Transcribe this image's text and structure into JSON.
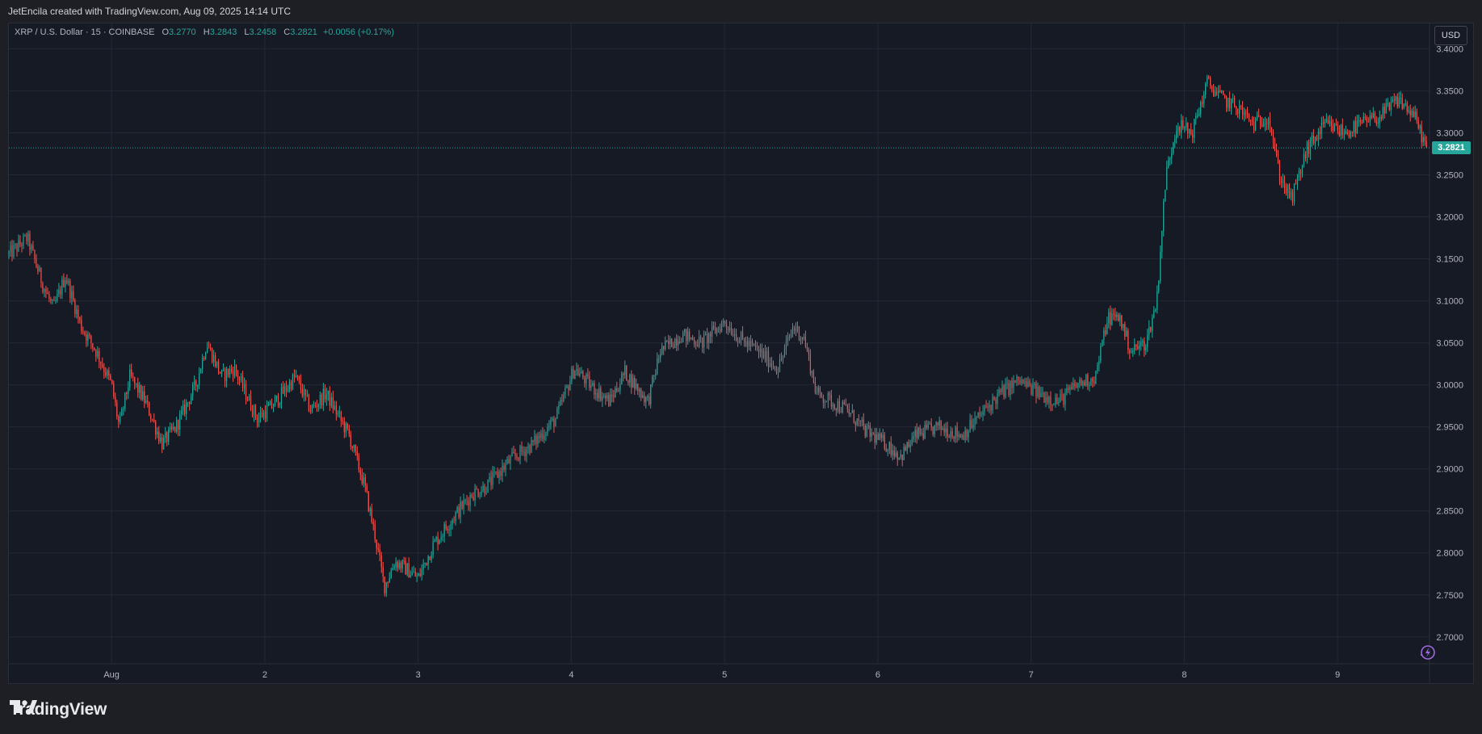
{
  "header": {
    "attribution": "JetEncila created with TradingView.com, Aug 09, 2025 14:14 UTC"
  },
  "legend": {
    "symbol": "XRP / U.S. Dollar · 15 · COINBASE",
    "o_label": "O",
    "o_value": "3.2770",
    "h_label": "H",
    "h_value": "3.2843",
    "l_label": "L",
    "l_value": "3.2458",
    "c_label": "C",
    "c_value": "3.2821",
    "change": "+0.0056 (+0.17%)"
  },
  "currency_button": "USD",
  "last_price_label": "3.2821",
  "brand": {
    "wordmark": "TradingView"
  },
  "icons": {
    "alert": "lightning-alert-icon",
    "logo": "tradingview-logo-icon"
  },
  "colors": {
    "up": "#26a69a",
    "down": "#ef5350",
    "background": "#161a25",
    "grid": "#242935",
    "axis_text": "#b2b5be"
  },
  "chart_data": {
    "type": "candlestick",
    "instrument": "XRP / U.S. Dollar",
    "interval": "15",
    "exchange": "COINBASE",
    "currency": "USD",
    "ylim": [
      2.67,
      3.41
    ],
    "y_ticks": [
      "3.4000",
      "3.3500",
      "3.3000",
      "3.2500",
      "3.2000",
      "3.1500",
      "3.1000",
      "3.0500",
      "3.0000",
      "2.9500",
      "2.9000",
      "2.8500",
      "2.8000",
      "2.7500",
      "2.7000"
    ],
    "x_ticks": [
      {
        "label": "Aug",
        "t": 1.0
      },
      {
        "label": "2",
        "t": 2.0
      },
      {
        "label": "3",
        "t": 3.0
      },
      {
        "label": "4",
        "t": 4.0
      },
      {
        "label": "5",
        "t": 5.0
      },
      {
        "label": "6",
        "t": 6.0
      },
      {
        "label": "7",
        "t": 7.0
      },
      {
        "label": "8",
        "t": 8.0
      },
      {
        "label": "9",
        "t": 9.0
      }
    ],
    "xlim": [
      0.33,
      9.6
    ],
    "last_price": 3.2821,
    "close_path": [
      [
        0.33,
        3.155
      ],
      [
        0.45,
        3.175
      ],
      [
        0.55,
        3.12
      ],
      [
        0.62,
        3.09
      ],
      [
        0.7,
        3.13
      ],
      [
        0.8,
        3.07
      ],
      [
        0.9,
        3.04
      ],
      [
        1.0,
        3.0
      ],
      [
        1.05,
        2.95
      ],
      [
        1.12,
        3.01
      ],
      [
        1.22,
        2.98
      ],
      [
        1.33,
        2.93
      ],
      [
        1.42,
        2.95
      ],
      [
        1.55,
        3.0
      ],
      [
        1.62,
        3.05
      ],
      [
        1.72,
        3.01
      ],
      [
        1.8,
        3.02
      ],
      [
        1.9,
        2.98
      ],
      [
        1.95,
        2.96
      ],
      [
        2.05,
        2.975
      ],
      [
        2.2,
        3.01
      ],
      [
        2.3,
        2.97
      ],
      [
        2.4,
        2.99
      ],
      [
        2.55,
        2.94
      ],
      [
        2.65,
        2.88
      ],
      [
        2.72,
        2.82
      ],
      [
        2.78,
        2.76
      ],
      [
        2.85,
        2.79
      ],
      [
        2.93,
        2.78
      ],
      [
        3.0,
        2.77
      ],
      [
        3.1,
        2.81
      ],
      [
        3.22,
        2.84
      ],
      [
        3.35,
        2.87
      ],
      [
        3.45,
        2.88
      ],
      [
        3.6,
        2.91
      ],
      [
        3.75,
        2.93
      ],
      [
        3.9,
        2.96
      ],
      [
        4.02,
        3.02
      ],
      [
        4.12,
        3.0
      ],
      [
        4.25,
        2.98
      ],
      [
        4.35,
        3.015
      ],
      [
        4.5,
        2.98
      ],
      [
        4.58,
        3.04
      ],
      [
        4.72,
        3.06
      ],
      [
        4.85,
        3.05
      ],
      [
        5.0,
        3.075
      ],
      [
        5.1,
        3.055
      ],
      [
        5.22,
        3.04
      ],
      [
        5.35,
        3.02
      ],
      [
        5.45,
        3.07
      ],
      [
        5.52,
        3.055
      ],
      [
        5.6,
        2.99
      ],
      [
        5.7,
        2.98
      ],
      [
        5.8,
        2.97
      ],
      [
        5.92,
        2.945
      ],
      [
        6.05,
        2.93
      ],
      [
        6.15,
        2.915
      ],
      [
        6.25,
        2.94
      ],
      [
        6.4,
        2.95
      ],
      [
        6.55,
        2.94
      ],
      [
        6.65,
        2.96
      ],
      [
        6.8,
        2.99
      ],
      [
        6.92,
        3.005
      ],
      [
        7.05,
        2.99
      ],
      [
        7.18,
        2.98
      ],
      [
        7.3,
        3.0
      ],
      [
        7.42,
        3.01
      ],
      [
        7.5,
        3.08
      ],
      [
        7.58,
        3.08
      ],
      [
        7.65,
        3.04
      ],
      [
        7.75,
        3.05
      ],
      [
        7.82,
        3.1
      ],
      [
        7.88,
        3.25
      ],
      [
        7.95,
        3.31
      ],
      [
        8.05,
        3.3
      ],
      [
        8.15,
        3.36
      ],
      [
        8.25,
        3.34
      ],
      [
        8.35,
        3.33
      ],
      [
        8.45,
        3.31
      ],
      [
        8.55,
        3.32
      ],
      [
        8.62,
        3.25
      ],
      [
        8.7,
        3.22
      ],
      [
        8.8,
        3.28
      ],
      [
        8.92,
        3.31
      ],
      [
        9.05,
        3.3
      ],
      [
        9.15,
        3.31
      ],
      [
        9.28,
        3.32
      ],
      [
        9.4,
        3.34
      ],
      [
        9.5,
        3.32
      ],
      [
        9.58,
        3.2821
      ]
    ]
  }
}
